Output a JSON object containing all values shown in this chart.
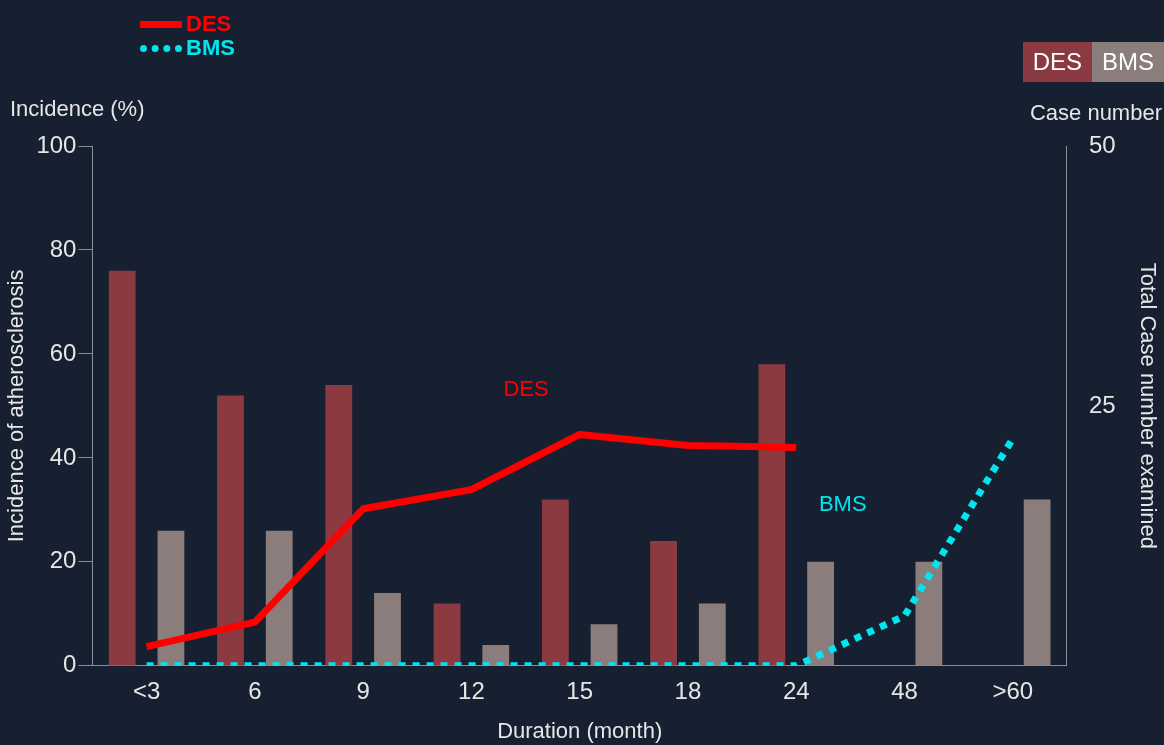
{
  "chart_data": {
    "type": "bar",
    "xlabel": "Duration (month)",
    "ylabel": "Incidence of atherosclerosis",
    "y2label": "Total Case number examined",
    "categories": [
      "<3",
      "6",
      "9",
      "12",
      "15",
      "18",
      "24",
      "48",
      ">60"
    ],
    "series": [
      {
        "name": "DES",
        "axis": "y2",
        "color": "#8b3a42",
        "values": [
          38,
          26,
          27,
          6,
          16,
          12,
          29,
          null,
          null
        ]
      },
      {
        "name": "BMS",
        "axis": "y2",
        "color": "#8c7d7d",
        "values": [
          13,
          13,
          7,
          2,
          4,
          6,
          10,
          10,
          16
        ]
      },
      {
        "name": "DES",
        "type": "line",
        "color": "#ff0000",
        "line_style": "solid",
        "values": [
          3.7,
          8.4,
          30.2,
          33.9,
          44.5,
          42.4,
          42,
          null,
          null
        ]
      },
      {
        "name": "BMS",
        "type": "line",
        "color": "#00e5ee",
        "line_style": "dotted",
        "values": [
          0,
          0,
          0,
          0,
          0,
          0,
          0,
          9.6,
          43.7
        ]
      }
    ],
    "ylim": [
      0,
      100
    ],
    "yticks": [
      0,
      20,
      40,
      60,
      80,
      100
    ],
    "y2lim": [
      0,
      50
    ],
    "y2ticks": [
      25,
      50
    ],
    "marker": "none",
    "grid": false,
    "legend": "top",
    "annotations": [
      "Incidence (%)",
      "Case number",
      "DES",
      "BMS"
    ]
  }
}
